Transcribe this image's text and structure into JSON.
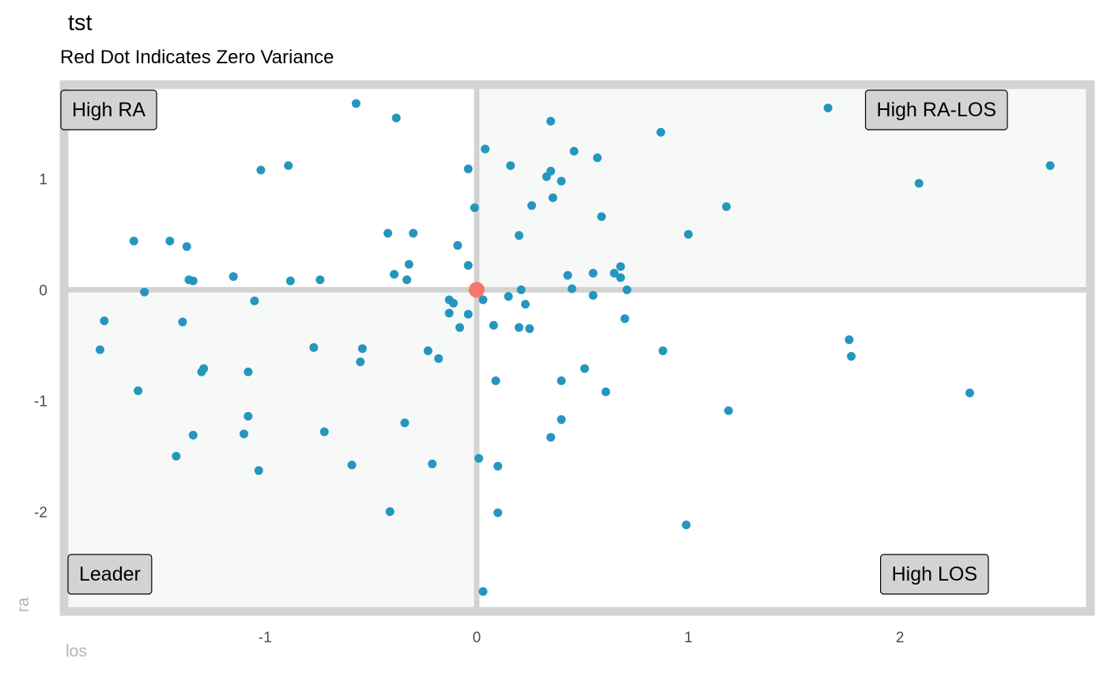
{
  "chart_data": {
    "type": "scatter",
    "title": "tst",
    "subtitle": "Red Dot Indicates Zero Variance",
    "xlabel": "los",
    "ylabel": "ra",
    "xlim": [
      -1.95,
      2.9
    ],
    "ylim": [
      -2.9,
      1.85
    ],
    "x_ticks": [
      -1,
      0,
      1,
      2
    ],
    "y_ticks": [
      1,
      0,
      -1,
      -2
    ],
    "grid": false,
    "colors": {
      "point": "#2596be",
      "zero_point": "#f8766d",
      "frame": "#d3d3d3",
      "shaded_quadrant": "#f7f9f9",
      "label_fill": "#d3d3d3"
    },
    "quadrant_labels": [
      {
        "text": "High RA",
        "position": "top-left"
      },
      {
        "text": "High RA-LOS",
        "position": "top-right"
      },
      {
        "text": "Leader",
        "position": "bottom-left"
      },
      {
        "text": "High LOS",
        "position": "bottom-right"
      }
    ],
    "zero_point": {
      "x": 0,
      "y": 0
    },
    "points": [
      {
        "x": -0.57,
        "y": 1.68
      },
      {
        "x": -0.38,
        "y": 1.55
      },
      {
        "x": 0.35,
        "y": 1.52
      },
      {
        "x": 1.66,
        "y": 1.64
      },
      {
        "x": 0.87,
        "y": 1.42
      },
      {
        "x": 0.04,
        "y": 1.27
      },
      {
        "x": 0.46,
        "y": 1.25
      },
      {
        "x": 0.57,
        "y": 1.19
      },
      {
        "x": 0.16,
        "y": 1.12
      },
      {
        "x": -0.89,
        "y": 1.12
      },
      {
        "x": -1.02,
        "y": 1.08
      },
      {
        "x": -0.04,
        "y": 1.09
      },
      {
        "x": 0.35,
        "y": 1.07
      },
      {
        "x": 0.33,
        "y": 1.02
      },
      {
        "x": 0.4,
        "y": 0.98
      },
      {
        "x": 2.71,
        "y": 1.12
      },
      {
        "x": 2.09,
        "y": 0.96
      },
      {
        "x": 0.36,
        "y": 0.83
      },
      {
        "x": 0.26,
        "y": 0.76
      },
      {
        "x": 1.18,
        "y": 0.75
      },
      {
        "x": -0.01,
        "y": 0.74
      },
      {
        "x": 0.59,
        "y": 0.66
      },
      {
        "x": -0.42,
        "y": 0.51
      },
      {
        "x": -0.3,
        "y": 0.51
      },
      {
        "x": 0.2,
        "y": 0.49
      },
      {
        "x": 1.0,
        "y": 0.5
      },
      {
        "x": -1.62,
        "y": 0.44
      },
      {
        "x": -1.45,
        "y": 0.44
      },
      {
        "x": -1.37,
        "y": 0.39
      },
      {
        "x": -0.09,
        "y": 0.4
      },
      {
        "x": -0.32,
        "y": 0.23
      },
      {
        "x": -0.04,
        "y": 0.22
      },
      {
        "x": 0.68,
        "y": 0.21
      },
      {
        "x": 0.55,
        "y": 0.15
      },
      {
        "x": 0.65,
        "y": 0.15
      },
      {
        "x": -0.39,
        "y": 0.14
      },
      {
        "x": 0.43,
        "y": 0.13
      },
      {
        "x": 0.68,
        "y": 0.11
      },
      {
        "x": -1.15,
        "y": 0.12
      },
      {
        "x": -1.36,
        "y": 0.09
      },
      {
        "x": -1.34,
        "y": 0.08
      },
      {
        "x": -0.88,
        "y": 0.08
      },
      {
        "x": -0.74,
        "y": 0.09
      },
      {
        "x": -0.33,
        "y": 0.09
      },
      {
        "x": 0.45,
        "y": 0.01
      },
      {
        "x": 0.21,
        "y": 0.0
      },
      {
        "x": 0.71,
        "y": 0.0
      },
      {
        "x": -1.57,
        "y": -0.02
      },
      {
        "x": 0.15,
        "y": -0.06
      },
      {
        "x": 0.55,
        "y": -0.05
      },
      {
        "x": -0.13,
        "y": -0.09
      },
      {
        "x": 0.03,
        "y": -0.09
      },
      {
        "x": -1.05,
        "y": -0.1
      },
      {
        "x": -0.11,
        "y": -0.12
      },
      {
        "x": 0.23,
        "y": -0.13
      },
      {
        "x": -0.13,
        "y": -0.21
      },
      {
        "x": -0.04,
        "y": -0.22
      },
      {
        "x": -1.76,
        "y": -0.28
      },
      {
        "x": -1.39,
        "y": -0.29
      },
      {
        "x": 0.7,
        "y": -0.26
      },
      {
        "x": -0.08,
        "y": -0.34
      },
      {
        "x": 0.08,
        "y": -0.32
      },
      {
        "x": 0.2,
        "y": -0.34
      },
      {
        "x": 0.25,
        "y": -0.35
      },
      {
        "x": 1.76,
        "y": -0.45
      },
      {
        "x": -1.78,
        "y": -0.54
      },
      {
        "x": -0.77,
        "y": -0.52
      },
      {
        "x": -0.54,
        "y": -0.53
      },
      {
        "x": -0.23,
        "y": -0.55
      },
      {
        "x": 0.88,
        "y": -0.55
      },
      {
        "x": 1.77,
        "y": -0.6
      },
      {
        "x": -0.55,
        "y": -0.65
      },
      {
        "x": -0.18,
        "y": -0.62
      },
      {
        "x": -1.29,
        "y": -0.71
      },
      {
        "x": -1.3,
        "y": -0.74
      },
      {
        "x": -1.08,
        "y": -0.74
      },
      {
        "x": 0.51,
        "y": -0.71
      },
      {
        "x": 0.09,
        "y": -0.82
      },
      {
        "x": 0.4,
        "y": -0.82
      },
      {
        "x": -1.6,
        "y": -0.91
      },
      {
        "x": 0.61,
        "y": -0.92
      },
      {
        "x": 2.33,
        "y": -0.93
      },
      {
        "x": -1.08,
        "y": -1.14
      },
      {
        "x": 1.19,
        "y": -1.09
      },
      {
        "x": 0.4,
        "y": -1.17
      },
      {
        "x": -0.34,
        "y": -1.2
      },
      {
        "x": -0.72,
        "y": -1.28
      },
      {
        "x": -1.34,
        "y": -1.31
      },
      {
        "x": -1.1,
        "y": -1.3
      },
      {
        "x": 0.35,
        "y": -1.33
      },
      {
        "x": -1.42,
        "y": -1.5
      },
      {
        "x": 0.01,
        "y": -1.52
      },
      {
        "x": -0.59,
        "y": -1.58
      },
      {
        "x": -0.21,
        "y": -1.57
      },
      {
        "x": 0.1,
        "y": -1.59
      },
      {
        "x": -1.03,
        "y": -1.63
      },
      {
        "x": -0.41,
        "y": -2.0
      },
      {
        "x": 0.1,
        "y": -2.01
      },
      {
        "x": 0.99,
        "y": -2.12
      },
      {
        "x": 0.03,
        "y": -2.72
      }
    ]
  }
}
